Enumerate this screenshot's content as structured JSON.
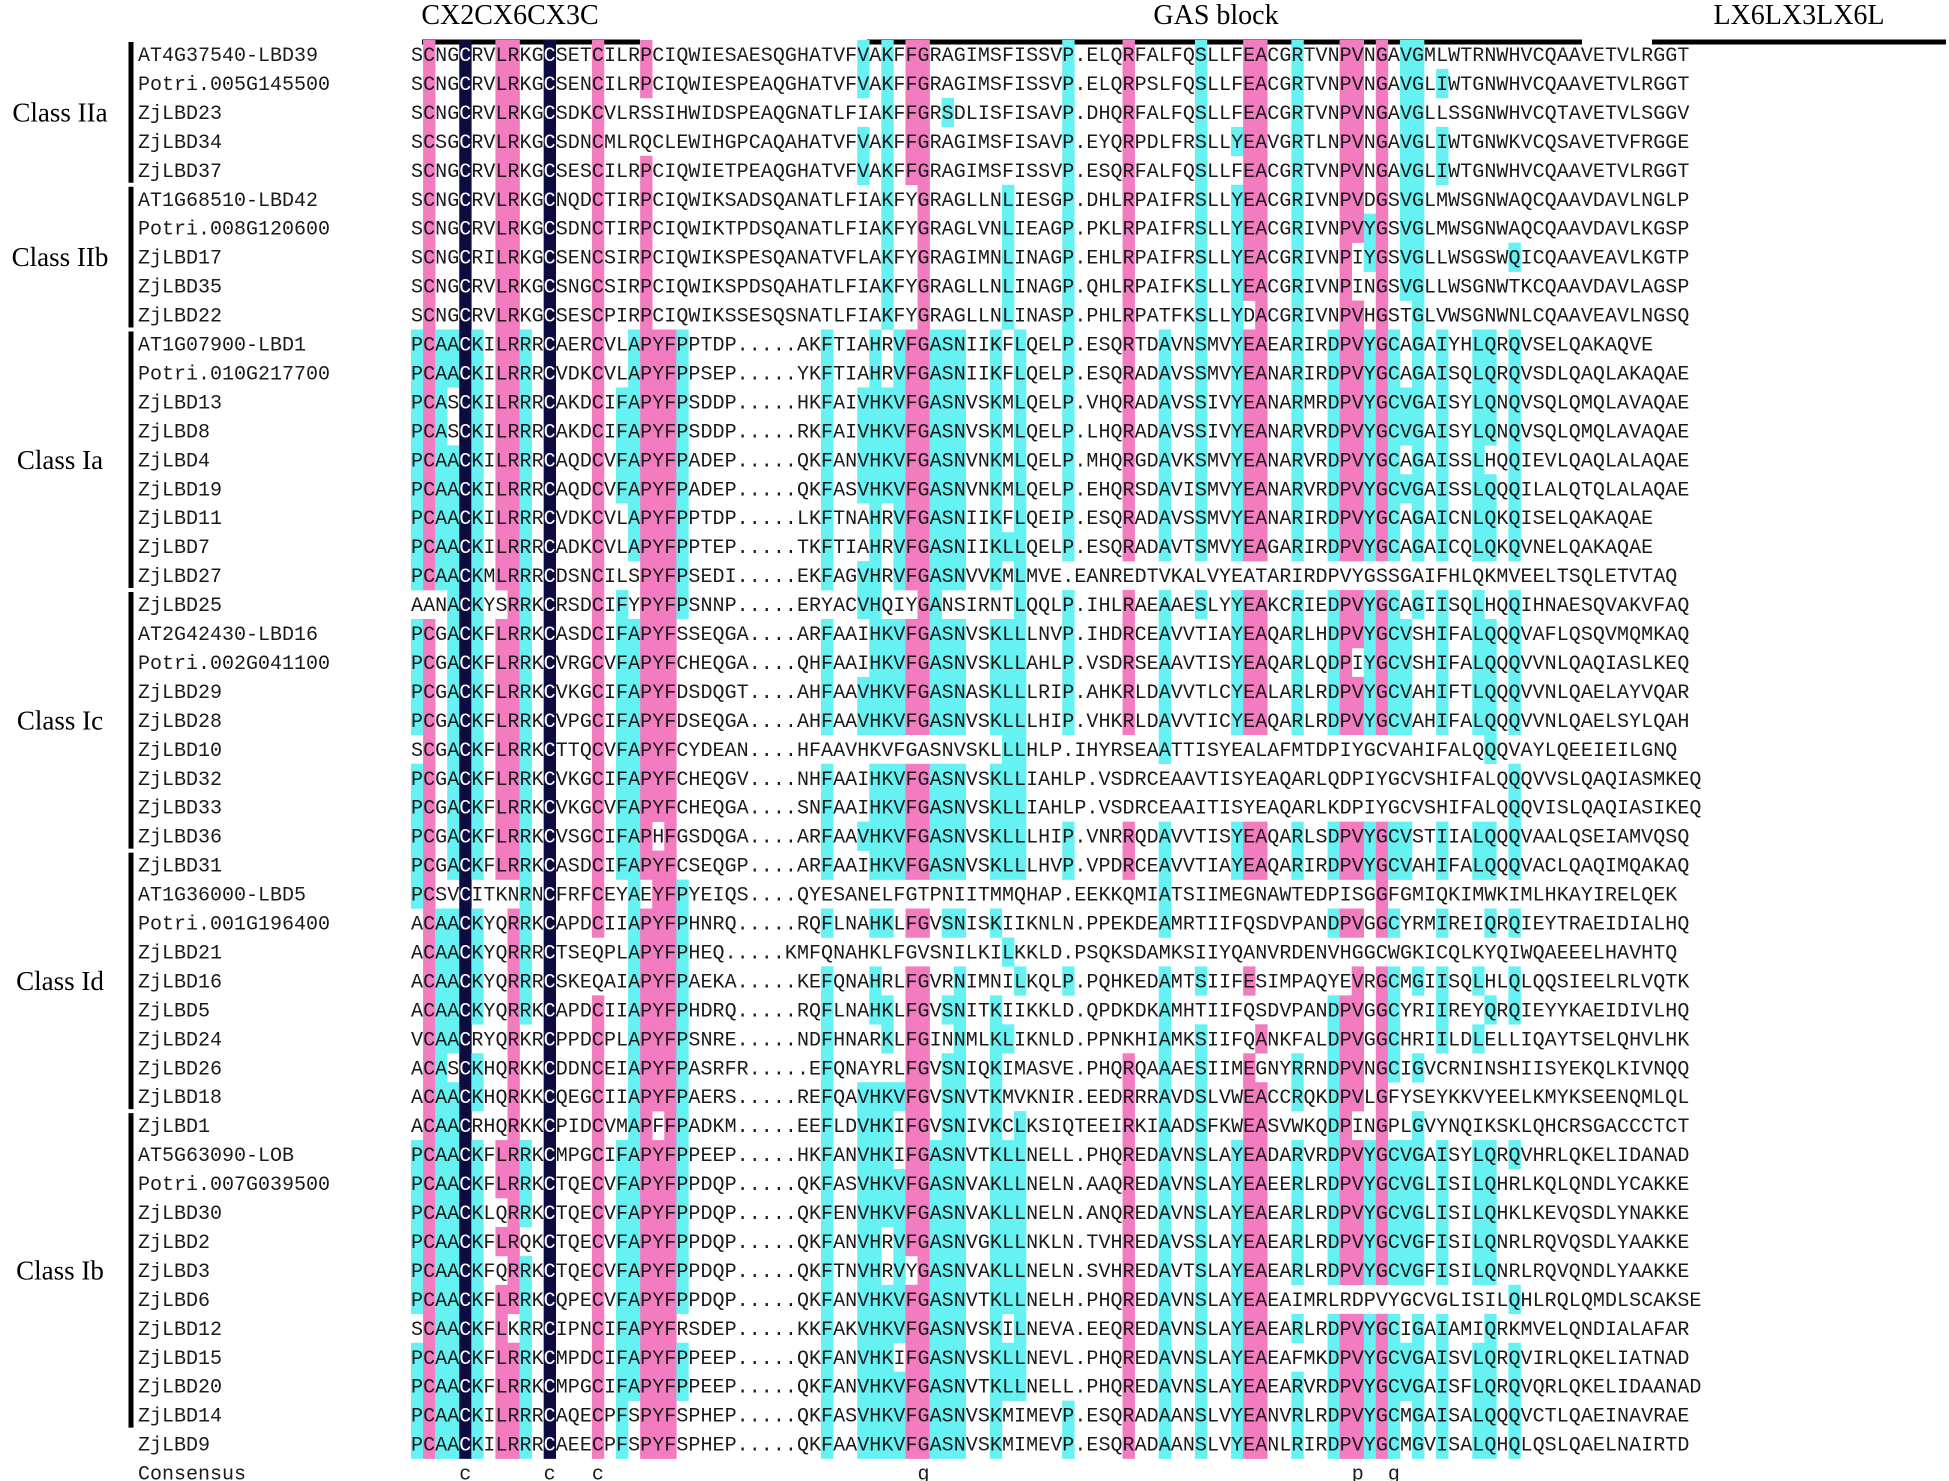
{
  "colors": {
    "identical": "#0c0c40",
    "high": "#f37cc0",
    "medium": "#66f2f2",
    "plain_text": "#1a1a1a",
    "identical_text": "#ffffff"
  },
  "headers": {
    "motif1": "CX2CX6CX3C",
    "motif2": "GAS block",
    "motif3": "LX6LX3LX6L"
  },
  "classes": [
    {
      "label": "Class IIa",
      "start": 0,
      "end": 4
    },
    {
      "label": "Class IIb",
      "start": 5,
      "end": 9
    },
    {
      "label": "Class Ia",
      "start": 10,
      "end": 18
    },
    {
      "label": "Class Ic",
      "start": 19,
      "end": 27
    },
    {
      "label": "Class Id",
      "start": 28,
      "end": 36
    },
    {
      "label": "Class Ib",
      "start": 37,
      "end": 47
    }
  ],
  "sequences": [
    {
      "name": "AT4G37540-LBD39",
      "seq": "SCNGCRVLRKGCSETCILRPCIQWIESAESQGHATVFVAKFFGRAGIMSFISSVP.ELQRFALFQSLLFEACGRTVNPVNGAVGMLWTRNWHVCQAAVETVLRGGT"
    },
    {
      "name": "Potri.005G145500",
      "seq": "SCNGCRVLRKGCSENCILRPCIQWIESPEAQGHATVFVAKFFGRAGIMSFISSVP.ELQRPSLFQSLLFEACGRTVNPVNGAVGLIWTGNWHVCQAAVETVLRGGT"
    },
    {
      "name": "ZjLBD23",
      "seq": "SCNGCRVLRKGCSDKCVLRSSIHWIDSPEAQGNATLFIAKFFGRSDLISFISAVP.DHQRFALFQSLLFEACGRTVNPVNGAVGLLSSGNWHVCQTAVETVLSGGV"
    },
    {
      "name": "ZjLBD34",
      "seq": "SCSGCRVLRKGCSDNCMLRQCLEWIHGPCAQAHATVFVAKFFGRAGIMSFISAVP.EYQRPDLFRSLLYEAVGRTLNPVNGAVGLIWTGNWKVCQSAVETVFRGGE"
    },
    {
      "name": "ZjLBD37",
      "seq": "SCNGCRVLRKGCSESCILRPCIQWIETPEAQGHATVFVAKFFGRAGIMSFISSVP.ESQRFALFQSLLFEACGRTVNPVNGAVGLIWTGNWHVCQAAVETVLRGGT"
    },
    {
      "name": "AT1G68510-LBD42",
      "seq": "SCNGCRVLRKGCNQDCTIRPCIQWIKSADSQANATLFIAKFYGRAGLLNLIESGP.DHLRPAIFRSLLYEACGRIVNPVDGSVGLMWSGNWAQCQAAVDAVLNGLP"
    },
    {
      "name": "Potri.008G120600",
      "seq": "SCNGCRVLRKGCSDNCTIRPCIQWIKTPDSQANATLFIAKFYGRAGLVNLIEAGP.PKLRPAIFRSLLYEACGRIVNPVYGSVGLMWSGNWAQCQAAVDAVLKGSP"
    },
    {
      "name": "ZjLBD17",
      "seq": "SCNGCRILRKGCSENCSIRPCIQWIKSPESQANATVFLAKFYGRAGIMNLINAGP.EHLRPAIFRSLLYEACGRIVNPIYGSVGLLWSGSWQICQAAVEAVLKGTP"
    },
    {
      "name": "ZjLBD35",
      "seq": "SCNGCRVLRKGCSNGCSIRPCIQWIKSPDSQAHATLFIAKFYGRAGLLNLINAGP.QHLRPAIFKSLLYEACGRIVNPINGSVGLLWSGNWTKCQAAVDAVLAGSP"
    },
    {
      "name": "ZjLBD22",
      "seq": "SCNGCRVLRKGCSESCPIRPCIQWIKSSESQSNATLFIAKFYGRAGLLNLINASP.PHLRPATFKSLLYDACGRIVNPVHGSTGLVWSGNWNLCQAAVEAVLNGSQ"
    },
    {
      "name": "AT1G07900-LBD1",
      "seq": "PCAACKILRRRCAERCVLAPYFPPTDP.....AKFTIAHRVFGASNIIKFLQELP.ESQRTDAVNSMVYEAEARIRDPVYGCAGAIYHLQRQVSELQAKAQVE"
    },
    {
      "name": "Potri.010G217700",
      "seq": "PCAACKILRRRCVDKCVLAPYFPPSEP.....YKFTIAHRVFGASNIIKFLQELP.ESQRADAVSSMVYEANARIRDPVYGCAGAISQLQRQVSDLQAQLAKAQAE"
    },
    {
      "name": "ZjLBD13",
      "seq": "PCASCKILRRRCAKDCIFAPYFPSDDP.....HKFAIVHKVFGASNVSKMLQELP.VHQRADAVSSIVYEANARMRDPVYGCVGAISYLQNQVSQLQMQLAVAQAE"
    },
    {
      "name": "ZjLBD8",
      "seq": "PCASCKILRRRCAKDCIFAPYFPSDDP.....RKFAIVHKVFGASNVSKMLQELP.LHQRADAVSSIVYEANARVRDPVYGCVGAISYLQNQVSQLQMQLAVAQAE"
    },
    {
      "name": "ZjLBD4",
      "seq": "PCAACKILRRRCAQDCVFAPYFPADEP.....QKFANVHKVFGASNVNKMLQELP.MHQRGDAVKSMVYEANARVRDPVYGCAGAISSLHQQIEVLQAQLALAQAE"
    },
    {
      "name": "ZjLBD19",
      "seq": "PCAACKILRRRCAQDCVFAPYFPADEP.....QKFASVHKVFGASNVNKMLQELP.EHQRSDAVISMVYEANARVRDPVYGCVGAISSLQQQILALQTQLALAQAE"
    },
    {
      "name": "ZjLBD11",
      "seq": "PCAACKILRRRCVDKCVLAPYFPPTDP.....LKFTNAHRVFGASNIIKFLQEIP.ESQRADAVSSMVYEANARIRDPVYGCAGAICNLQKQISELQAKAQAE"
    },
    {
      "name": "ZjLBD7",
      "seq": "PCAACKILRRRCADKCVLAPYFPPTEP.....TKFTIAHRVFGASNIIKLLQELP.ESQRADAVTSMVYEAGARIRDPVYGCAGAICQLQKQVNELQAKAQAE"
    },
    {
      "name": "ZjLBD27",
      "seq": "PCAACKMLRRRCDSNCILSPYFPSEDI.....EKFAGVHRVFGASNVVKMLMVE.EANREDTVKALVYEATARIRDPVYGSSGAIFHLQKMVEELTSQLETVTAQ"
    },
    {
      "name": "ZjLBD25",
      "seq": "AANACKYSRRKCRSDCIFYPYFPSNNP.....ERYACVHQIYGANSIRNTLQQLP.IHLRAEAAESLYYEAKCRIEDPVYGCAGIISQLHQQIHNAESQVAKVFAQ"
    },
    {
      "name": "AT2G42430-LBD16",
      "seq": "PCGACKFLRRKCASDCIFAPYFSSEQGA....ARFAAIHKVFGASNVSKLLLNVP.IHDRCEAVVTIAYEAQARLHDPVYGCVSHIFALQQQVAFLQSQVMQMKAQ"
    },
    {
      "name": "Potri.002G041100",
      "seq": "PCGACKFLRRKCVRGCVFAPYFCHEQGA....QHFAAIHKVFGASNVSKLLAHLP.VSDRSEAAVTISYEAQARLQDPIYGCVSHIFALQQQVVNLQAQIASLKEQ"
    },
    {
      "name": "ZjLBD29",
      "seq": "PCGACKFLRRKCVKGCIFAPYFDSDQGT....AHFAAVHKVFGASNASKLLLRIP.AHKRLDAVVTLCYEALARLRDPVYGCVAHIFTLQQQVVNLQAELAYVQAR"
    },
    {
      "name": "ZjLBD28",
      "seq": "PCGACKFLRRKCVPGCIFAPYFDSEQGA....AHFAAVHKVFGASNVSKLLLHIP.VHKRLDAVVTICYEAQARLRDPVYGCVAHIFALQQQVVNLQAELSYLQAH"
    },
    {
      "name": "ZjLBD10",
      "seq": "SCGACKFLRRKCTTQCVFAPYFCYDEAN....HFAAVHKVFGASNVSKLLLHLP.IHYRSEAATTISYEALAFMTDPIYGCVAHIFALQQQVAYLQEEIEILGNQ"
    },
    {
      "name": "ZjLBD32",
      "seq": "PCGACKFLRRKCVKGCIFAPYFCHEQGV....NHFAAIHKVFGASNVSKLLIAHLP.VSDRCEAAVTISYEAQARLQDPIYGCVSHIFALQQQVVSLQAQIASMKEQ"
    },
    {
      "name": "ZjLBD33",
      "seq": "PCGACKFLRRKCVKGCVFAPYFCHEQGA....SNFAAIHKVFGASNVSKLLIAHLP.VSDRCEAAITISYEAQARLKDPIYGCVSHIFALQQQVISLQAQIASIKEQ"
    },
    {
      "name": "ZjLBD36",
      "seq": "PCGACKFLRRKCVSGCIFAPHFGSDQGA....ARFAAVHKVFGASNVSKLLLHIP.VNRRQDAVVTISYEAQARLSDPVYGCVSTIIALQQQVAALQSEIAMVQSQ"
    },
    {
      "name": "ZjLBD31",
      "seq": "PCGACKFLRRKCASDCIFAPYFCSEQGP....ARFAAIHKVFGASNVSKLLLHVP.VPDRCEAVVTIAYEAQARIRDPVYGCVAHIFALQQQVACLQAQIMQAKAQ"
    },
    {
      "name": "AT1G36000-LBD5",
      "seq": "PCSVCITKNRNCFRFCEYAEYFPYEIQS....QYESANELFGTPNIITMMQHAP.EEKKQMIATSIIMEGNAWTEDPISGGFGMIQKIMWKIMLHKAYIRELQEK"
    },
    {
      "name": "Potri.001G196400",
      "seq": "ACAACKYQRRKCAPDCIIAPYFPHNRQ.....RQFLNAHKLFGVSNISKIIKNLN.PPEKDEAMRTIIFQSDVPANDPVGGCYRMIREIQRQIEYTRAEIDIALHQ"
    },
    {
      "name": "ZjLBD21",
      "seq": "ACAACKYQRRRCTSEQPLAPYFPHEQ.....KMFQNAHKLFGVSNILKILKKLD.PSQKSDAMKSIIYQANVRDENVHGGCWGKICQLKYQIWQAEEELHAVHTQ"
    },
    {
      "name": "ZjLBD16",
      "seq": "ACAACKYQRRRCSKEQAIAPYFPAEKA.....KEFQNAHRLFGVRNIMNILKQLP.PQHKEDAMTSIIFESIMPAQYEVRGCMGIISQLHLQLQQSIEELRLVQTK"
    },
    {
      "name": "ZjLBD5",
      "seq": "ACAACKYQRRKCAPDCIIAPYFPHDRQ.....RQFLNAHKLFGVSNITKIIKKLD.QPDKDKAMHTIIFQSDVPANDPVGGCYRIIREYQRQIEYYKAEIDIVLHQ"
    },
    {
      "name": "ZjLBD24",
      "seq": "VCAACRYQRKRCPPDCPLAPYFPSNRE.....NDFHNARKLFGINNMLKLIKNLD.PPNKHIAMKSIIFQANKFALDPVGGCHRIILDLELLIQAYTSELQHVLHK"
    },
    {
      "name": "ZjLBD26",
      "seq": "ACASCKHQRKKCDDNCEIAPYFPASRFR.....EFQNAYRLFGVSNIQKIMASVE.PHQRQAAAESIIMEGNYRRNDPVNGCIGVCRNINSHIISYEKQLKIVNQQ"
    },
    {
      "name": "ZjLBD18",
      "seq": "ACAACKHQRKKCQEGCIIAPYFPAERS.....REFQAVHKVFGVSNVTKMVKNIR.EEDRRRAVDSLVWEACCRQKDPVLGFYSEYKKVYEELKMYKSEENQMLQL"
    },
    {
      "name": "ZjLBD1",
      "seq": "ACAACRHQRKKCPIDCVMAPFFPADKM.....EEFLDVHKIFGVSNIVKCLKSIQTEEIRKIAADSFKWEASVWKQDPINGPLGVYNQIKSKLQHCRSGACCCTCT"
    },
    {
      "name": "AT5G63090-LOB",
      "seq": "PCAACKFLRRKCMPGCIFAPYFPPEEP.....HKFANVHKIFGASNVTKLLNELL.PHQREDAVNSLAYEADARVRDPVYGCVGAISYLQRQVHRLQKELIDANAD"
    },
    {
      "name": "Potri.007G039500",
      "seq": "PCAACKFLRRKCTQECVFAPYFPPDQP.....QKFASVHKVFGASNVAKLLNELN.AAQREDAVNSLAYEAEERLRDPVYGCVGLISILQHRLKQLQNDLYCAKKE"
    },
    {
      "name": "ZjLBD30",
      "seq": "PCAACKLQRRKCTQECVFAPYFPPDQP.....QKFENVHKVFGASNVAKLLNELN.ANQREDAVNSLAYEAEARLRDPVYGCVGLISILQHKLKEVQSDLYNAKKE"
    },
    {
      "name": "ZjLBD2",
      "seq": "PCAACKFLRQKCTQECVFAPYFPPDQP.....QKFANVHRVFGASNVGKLLNKLN.TVHREDAVSSLAYEAEARLRDPVYGCVGFISILQNRLRQVQSDLYAAKKE"
    },
    {
      "name": "ZjLBD3",
      "seq": "PCAACKFQRRKCTQECVFAPYFPPDQP.....QKFTNVHRVYGASNVAKLLNELN.SVHREDAVTSLAYEAEARLRDPVYGCVGFISILQNRLRQVQNDLYAAKKE"
    },
    {
      "name": "ZjLBD6",
      "seq": "PCAACKFLRRKCQPECVFAPYFPPDQP.....QKFANVHKVFGASNVTKLLNELH.PHQREDAVNSLAYEAEAIMRLRDPVYGCVGLISILQHLRQLQMDLSCAKSE"
    },
    {
      "name": "ZjLBD12",
      "seq": "SCAACKFLKRRCIPNCIFAPYFRSDEP.....KKFAKVHKVFGASNVSKILNEVA.EEQREDAVNSLAYEAEARLRDPVYGCIGAIAMIQRKMVELQNDIALAFAR"
    },
    {
      "name": "ZjLBD15",
      "seq": "PCAACKFLRRKCMPDCIFAPYFPPEEP.....QKFANVHKIFGASNVSKLLNEVL.PHQREDAVNSLAYEAEAFMKDPVYGCVGAISVLQRQVIRLQKELIATNAD"
    },
    {
      "name": "ZjLBD20",
      "seq": "PCAACKFLRRKCMPGCIFAPYFPPEEP.....QKFANVHKVFGASNVTKLLNELL.PHQREDAVNSLAYEAEARVRDPVYGCVGAISFLQRQVQRLQKELIDAANAD"
    },
    {
      "name": "ZjLBD14",
      "seq": "PCAACKILRRRCAQECPFSPYFSPHEP.....QKFASVHKVFGASNVSKMIMEVP.ESQRADAANSLVYEANVRLRDPVYGCMGAISALQQQVCTLQAEINAVRAE"
    },
    {
      "name": "ZjLBD9",
      "seq": "PCAACKILRRRCAEECPFSPYFSPHEP.....QKFAAVHKVFGASNVSKMIMEVP.ESQRADAANSLVYEANLRIRDPVYGCMGVISALQHQLQSLQAELNAIRTD"
    }
  ],
  "consensus": {
    "label": "Consensus",
    "marks": [
      {
        "col": 4,
        "char": "c"
      },
      {
        "col": 11,
        "char": "c"
      },
      {
        "col": 15,
        "char": "c"
      },
      {
        "col": 42,
        "char": "g"
      },
      {
        "col": 78,
        "char": "p"
      },
      {
        "col": 81,
        "char": "g"
      }
    ]
  }
}
